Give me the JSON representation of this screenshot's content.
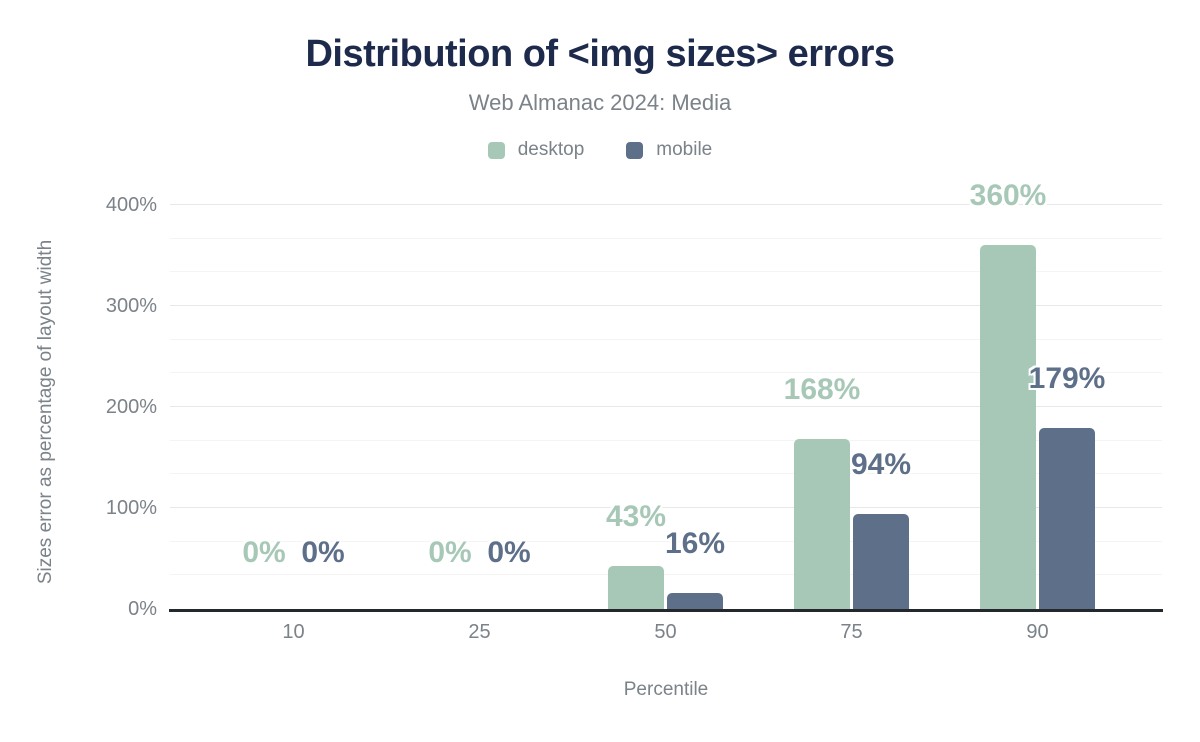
{
  "chart_data": {
    "type": "bar",
    "title": "Distribution of <img sizes> errors",
    "subtitle": "Web Almanac 2024: Media",
    "xlabel": "Percentile",
    "ylabel": "Sizes error as percentage of layout width",
    "categories": [
      "10",
      "25",
      "50",
      "75",
      "90"
    ],
    "series": [
      {
        "name": "desktop",
        "color": "#a7c8b7",
        "values": [
          0,
          0,
          43,
          168,
          360
        ],
        "labels": [
          "0%",
          "0%",
          "43%",
          "168%",
          "360%"
        ]
      },
      {
        "name": "mobile",
        "color": "#5e6f8a",
        "values": [
          0,
          0,
          16,
          94,
          179
        ],
        "labels": [
          "0%",
          "0%",
          "16%",
          "94%",
          "179%"
        ]
      }
    ],
    "ylim": [
      0,
      400
    ],
    "yticks": [
      {
        "value": 0,
        "label": "0%"
      },
      {
        "value": 100,
        "label": "100%"
      },
      {
        "value": 200,
        "label": "200%"
      },
      {
        "value": 300,
        "label": "300%"
      },
      {
        "value": 400,
        "label": "400%"
      }
    ],
    "grid": "horizontal, minor lines at thirds of major interval",
    "legend_position": "top",
    "style": {
      "title_color": "#1e2a4c",
      "text_color": "#7b8288",
      "axis_line_color": "#23282d",
      "grid_major_color": "#e8e8e8",
      "grid_minor_color": "#f4f4f4",
      "background": "#ffffff"
    }
  }
}
